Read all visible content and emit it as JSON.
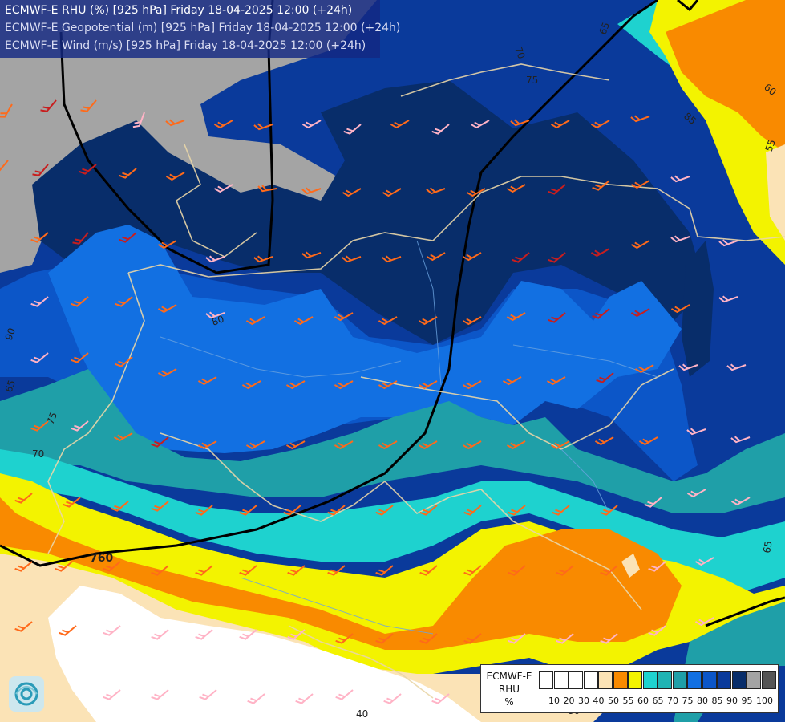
{
  "header": {
    "line1": "ECMWF-E RHU (%) [925 hPa] Friday 18-04-2025 12:00 (+24h)",
    "line2": "ECMWF-E Geopotential (m) [925 hPa] Friday 18-04-2025 12:00 (+24h)",
    "line3": "ECMWF-E Wind (m/s) [925 hPa] Friday 18-04-2025 12:00 (+24h)"
  },
  "legend": {
    "title_line1": "ECMWF-E",
    "title_line2": "RHU",
    "title_line3": "%",
    "levels": [
      "10",
      "20",
      "30",
      "40",
      "50",
      "55",
      "60",
      "65",
      "70",
      "75",
      "80",
      "85",
      "90",
      "95",
      "100"
    ],
    "colors": [
      "#ffffff",
      "#ffffff",
      "#ffffff",
      "#ffffff",
      "#fbe3b6",
      "#f98a00",
      "#f3f300",
      "#1ed2cf",
      "#20b3b3",
      "#1f9fa8",
      "#1270e2",
      "#0c56c8",
      "#0a3a9b",
      "#082d6a",
      "#a4a4a4",
      "#555555"
    ]
  },
  "contour_labels": {
    "geopotential_760": "760",
    "rh_labels": [
      "60",
      "65",
      "65",
      "70",
      "70",
      "75",
      "75",
      "80",
      "85",
      "90",
      "40",
      "55",
      "60",
      "65",
      "80"
    ]
  },
  "colors": {
    "header_bg": "#142882",
    "rh_white": "#ffffff",
    "rh_tan": "#fbe3b6",
    "rh_orange": "#f98a00",
    "rh_yellow": "#f3f300",
    "rh_cyan": "#1ed2cf",
    "rh_teal": "#1f9fa8",
    "rh_blue": "#1270e2",
    "rh_mid_blue": "#0c56c8",
    "rh_dark_blue": "#0a3a9b",
    "rh_navy": "#082d6a",
    "rh_gray": "#a4a4a4"
  }
}
